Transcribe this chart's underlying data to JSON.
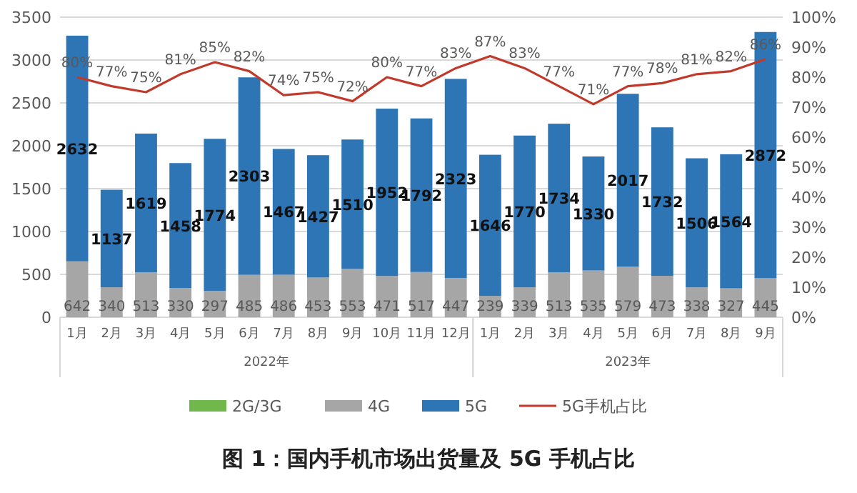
{
  "chart_data": {
    "type": "bar",
    "stacked": true,
    "title": "图 1：国内手机市场出货量及 5G 手机占比",
    "categories": [
      "1月",
      "2月",
      "3月",
      "4月",
      "5月",
      "6月",
      "7月",
      "8月",
      "9月",
      "10月",
      "11月",
      "12月",
      "1月",
      "2月",
      "3月",
      "4月",
      "5月",
      "6月",
      "7月",
      "8月",
      "9月"
    ],
    "annotations": [
      "2022年",
      "2023年"
    ],
    "series": [
      {
        "name": "2G/3G",
        "color": "#70b84c",
        "values": [
          10,
          10,
          10,
          10,
          10,
          10,
          10,
          10,
          10,
          10,
          10,
          10,
          10,
          10,
          10,
          10,
          10,
          10,
          10,
          10,
          10
        ]
      },
      {
        "name": "4G",
        "color": "#a6a6a6",
        "values": [
          642,
          340,
          513,
          330,
          297,
          485,
          486,
          453,
          553,
          471,
          517,
          447,
          239,
          339,
          513,
          535,
          579,
          473,
          338,
          327,
          445
        ],
        "value_labels": [
          "642",
          "340",
          "513",
          "330",
          "297",
          "485",
          "486",
          "453",
          "553",
          "471",
          "517",
          "447",
          "239",
          "339",
          "513",
          "535",
          "579",
          "473",
          "338",
          "327",
          "445"
        ]
      },
      {
        "name": "5G",
        "color": "#2e75b6",
        "values": [
          2632,
          1137,
          1619,
          1458,
          1774,
          2303,
          1467,
          1427,
          1510,
          1952,
          1792,
          2323,
          1646,
          1770,
          1734,
          1330,
          2017,
          1732,
          1506,
          1564,
          2872
        ],
        "value_labels": [
          "2632",
          "1137",
          "1619",
          "1458",
          "1774",
          "2303",
          "1467",
          "1427",
          "1510",
          "1952",
          "1792",
          "2323",
          "1646",
          "1770",
          "1734",
          "1330",
          "2017",
          "1732",
          "1506",
          "1564",
          "2872"
        ]
      },
      {
        "name": "5G手机占比",
        "type": "line",
        "axis": "y2",
        "color": "#c0392b",
        "values": [
          80,
          77,
          75,
          81,
          85,
          82,
          74,
          75,
          72,
          80,
          77,
          83,
          87,
          83,
          77,
          71,
          77,
          78,
          81,
          82,
          86
        ],
        "value_labels": [
          "80%",
          "77%",
          "75%",
          "81%",
          "85%",
          "82%",
          "74%",
          "75%",
          "72%",
          "80%",
          "77%",
          "83%",
          "87%",
          "83%",
          "77%",
          "71%",
          "77%",
          "78%",
          "81%",
          "82%",
          "86%"
        ]
      }
    ],
    "ylim": [
      0,
      3500
    ],
    "yticks": [
      0,
      500,
      1000,
      1500,
      2000,
      2500,
      3000,
      3500
    ],
    "y2lim": [
      0,
      100
    ],
    "y2ticks": [
      {
        "value": 0,
        "label": "0%"
      },
      {
        "value": 10,
        "label": "10%"
      },
      {
        "value": 20,
        "label": "20%"
      },
      {
        "value": 30,
        "label": "30%"
      },
      {
        "value": 40,
        "label": "40%"
      },
      {
        "value": 50,
        "label": "50%"
      },
      {
        "value": 60,
        "label": "60%"
      },
      {
        "value": 70,
        "label": "70%"
      },
      {
        "value": 80,
        "label": "80%"
      },
      {
        "value": 90,
        "label": "90%"
      },
      {
        "value": 100,
        "label": "100%"
      }
    ],
    "grid": "y",
    "legend": "bottom",
    "marker": "none",
    "line_style": "solid"
  }
}
